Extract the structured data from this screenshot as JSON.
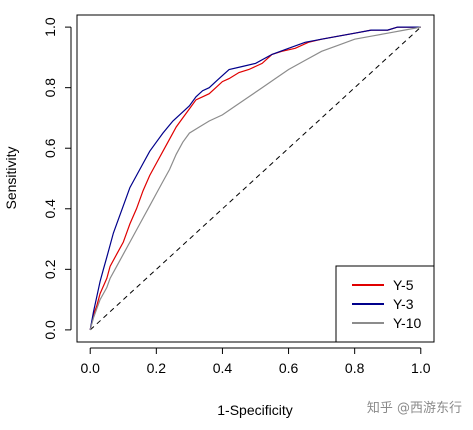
{
  "chart_data": {
    "type": "line",
    "title": "",
    "xlabel": "1-Specificity",
    "ylabel": "Sensitivity",
    "xlim": [
      -0.04,
      1.04
    ],
    "ylim": [
      -0.04,
      1.04
    ],
    "x_ticks": [
      "0.0",
      "0.2",
      "0.4",
      "0.6",
      "0.8",
      "1.0"
    ],
    "y_ticks": [
      "0.0",
      "0.2",
      "0.4",
      "0.6",
      "0.8",
      "1.0"
    ],
    "grid": false,
    "legend_position": "bottom-right",
    "reference_line": {
      "from": [
        0,
        0
      ],
      "to": [
        1,
        1
      ],
      "style": "dashed",
      "color": "#000000"
    },
    "series": [
      {
        "name": "Y-5",
        "color": "#e00000",
        "points": [
          [
            0,
            0
          ],
          [
            0.01,
            0.05
          ],
          [
            0.02,
            0.08
          ],
          [
            0.03,
            0.12
          ],
          [
            0.05,
            0.17
          ],
          [
            0.06,
            0.21
          ],
          [
            0.08,
            0.25
          ],
          [
            0.1,
            0.29
          ],
          [
            0.12,
            0.35
          ],
          [
            0.14,
            0.4
          ],
          [
            0.16,
            0.46
          ],
          [
            0.18,
            0.51
          ],
          [
            0.2,
            0.55
          ],
          [
            0.22,
            0.59
          ],
          [
            0.24,
            0.63
          ],
          [
            0.26,
            0.67
          ],
          [
            0.28,
            0.7
          ],
          [
            0.3,
            0.73
          ],
          [
            0.32,
            0.76
          ],
          [
            0.34,
            0.77
          ],
          [
            0.36,
            0.78
          ],
          [
            0.38,
            0.8
          ],
          [
            0.4,
            0.82
          ],
          [
            0.42,
            0.83
          ],
          [
            0.45,
            0.85
          ],
          [
            0.48,
            0.86
          ],
          [
            0.52,
            0.88
          ],
          [
            0.55,
            0.91
          ],
          [
            0.58,
            0.92
          ],
          [
            0.62,
            0.93
          ],
          [
            0.66,
            0.95
          ],
          [
            0.7,
            0.96
          ],
          [
            0.75,
            0.97
          ],
          [
            0.8,
            0.98
          ],
          [
            0.85,
            0.99
          ],
          [
            0.9,
            0.99
          ],
          [
            0.93,
            1.0
          ],
          [
            1,
            1
          ]
        ]
      },
      {
        "name": "Y-3",
        "color": "#00008b",
        "points": [
          [
            0,
            0
          ],
          [
            0.01,
            0.06
          ],
          [
            0.02,
            0.11
          ],
          [
            0.03,
            0.16
          ],
          [
            0.04,
            0.2
          ],
          [
            0.05,
            0.24
          ],
          [
            0.06,
            0.28
          ],
          [
            0.07,
            0.32
          ],
          [
            0.08,
            0.35
          ],
          [
            0.1,
            0.41
          ],
          [
            0.12,
            0.47
          ],
          [
            0.14,
            0.51
          ],
          [
            0.16,
            0.55
          ],
          [
            0.18,
            0.59
          ],
          [
            0.2,
            0.62
          ],
          [
            0.22,
            0.65
          ],
          [
            0.25,
            0.69
          ],
          [
            0.28,
            0.72
          ],
          [
            0.3,
            0.74
          ],
          [
            0.32,
            0.77
          ],
          [
            0.34,
            0.79
          ],
          [
            0.36,
            0.8
          ],
          [
            0.38,
            0.82
          ],
          [
            0.4,
            0.84
          ],
          [
            0.42,
            0.86
          ],
          [
            0.46,
            0.87
          ],
          [
            0.5,
            0.88
          ],
          [
            0.55,
            0.91
          ],
          [
            0.6,
            0.93
          ],
          [
            0.65,
            0.95
          ],
          [
            0.7,
            0.96
          ],
          [
            0.75,
            0.97
          ],
          [
            0.8,
            0.98
          ],
          [
            0.85,
            0.99
          ],
          [
            0.9,
            0.99
          ],
          [
            0.93,
            1.0
          ],
          [
            1,
            1
          ]
        ]
      },
      {
        "name": "Y-10",
        "color": "#8c8c8c",
        "points": [
          [
            0,
            0
          ],
          [
            0.01,
            0.04
          ],
          [
            0.02,
            0.07
          ],
          [
            0.03,
            0.1
          ],
          [
            0.05,
            0.14
          ],
          [
            0.06,
            0.17
          ],
          [
            0.08,
            0.21
          ],
          [
            0.1,
            0.25
          ],
          [
            0.12,
            0.29
          ],
          [
            0.14,
            0.33
          ],
          [
            0.16,
            0.37
          ],
          [
            0.18,
            0.41
          ],
          [
            0.2,
            0.45
          ],
          [
            0.22,
            0.49
          ],
          [
            0.24,
            0.53
          ],
          [
            0.26,
            0.58
          ],
          [
            0.28,
            0.62
          ],
          [
            0.3,
            0.65
          ],
          [
            0.33,
            0.67
          ],
          [
            0.36,
            0.69
          ],
          [
            0.4,
            0.71
          ],
          [
            0.44,
            0.74
          ],
          [
            0.48,
            0.77
          ],
          [
            0.52,
            0.8
          ],
          [
            0.56,
            0.83
          ],
          [
            0.6,
            0.86
          ],
          [
            0.65,
            0.89
          ],
          [
            0.7,
            0.92
          ],
          [
            0.75,
            0.94
          ],
          [
            0.8,
            0.96
          ],
          [
            0.85,
            0.97
          ],
          [
            0.9,
            0.98
          ],
          [
            0.95,
            0.99
          ],
          [
            1,
            1
          ]
        ]
      }
    ]
  },
  "watermark": "知乎 @西游东行"
}
